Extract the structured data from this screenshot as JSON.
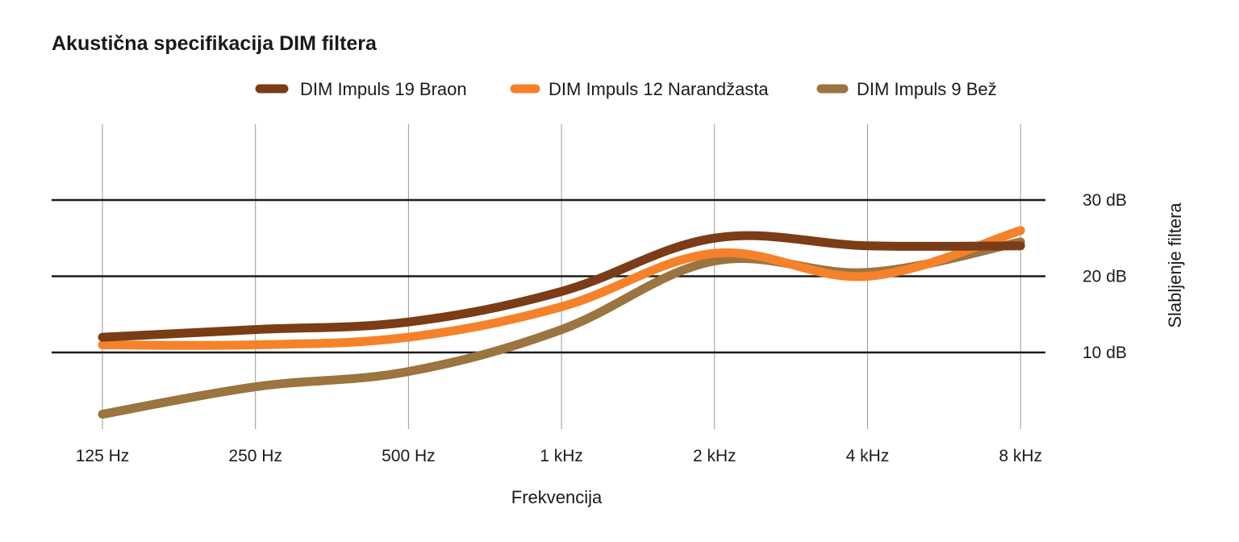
{
  "chart_data": {
    "type": "line",
    "title": "Akustična specifikacija DIM filtera",
    "xlabel": "Frekvencija",
    "ylabel": "Slabljenje filtera",
    "categories": [
      "125 Hz",
      "250 Hz",
      "500 Hz",
      "1 kHz",
      "2 kHz",
      "4 kHz",
      "8 kHz"
    ],
    "ylim": [
      0,
      40
    ],
    "yticks": [
      {
        "value": 10,
        "label": "10 dB"
      },
      {
        "value": 20,
        "label": "20 dB"
      },
      {
        "value": 30,
        "label": "30 dB"
      }
    ],
    "grid": true,
    "legend": "top",
    "series": [
      {
        "name": "DIM Impuls 19 Braon",
        "color": "#7a3d17",
        "values": [
          12,
          13,
          14,
          18,
          25,
          24,
          24
        ]
      },
      {
        "name": "DIM Impuls 12 Narandžasta",
        "color": "#f5822a",
        "values": [
          11,
          11,
          12,
          16,
          23,
          20,
          26
        ]
      },
      {
        "name": "DIM Impuls 9 Bež",
        "color": "#9b7440",
        "values": [
          1.9,
          5.5,
          7.5,
          13,
          22,
          20.5,
          24.5
        ]
      }
    ]
  }
}
